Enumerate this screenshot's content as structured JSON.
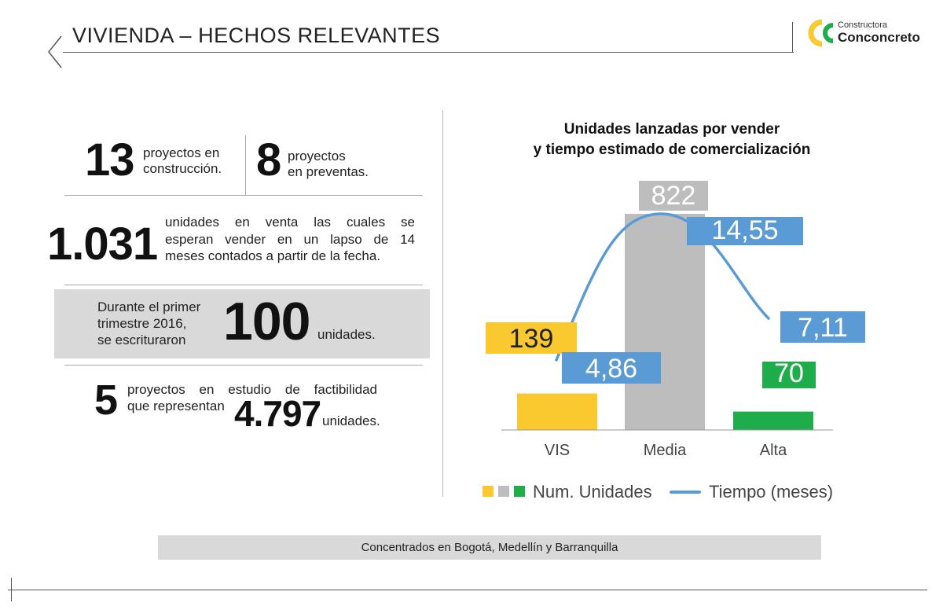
{
  "header": {
    "title": "VIVIENDA – HECHOS RELEVANTES",
    "logo_small": "Constructora",
    "logo_big": "Conconcreto"
  },
  "stats": {
    "s13": {
      "number": "13",
      "text_line1": "proyectos en",
      "text_line2": "construcción."
    },
    "s8": {
      "number": "8",
      "text_line1": "proyectos",
      "text_line2": "en  preventas."
    },
    "s1031": {
      "number": "1.031",
      "line1": "unidades en venta las cuales se",
      "line2": "esperan vender en un lapso de 14",
      "line3": "meses contados a partir de la fecha."
    },
    "s100": {
      "line1": "Durante el primer",
      "line2": "trimestre 2016,",
      "line3": "se escrituraron",
      "number": "100",
      "unit": "unidades."
    },
    "s5": {
      "number": "5",
      "line1": "proyectos en estudio de factibilidad",
      "line2": "que representan",
      "number2": "4.797",
      "unit": "unidades."
    }
  },
  "footer_note": "Concentrados en Bogotá, Medellín y Barranquilla",
  "colors": {
    "vis": "#f9c92f",
    "media": "#bdbdbd",
    "alta": "#1fac4b",
    "line": "#5b9bd5",
    "label_blue": "#5b9bd5"
  },
  "chart_data": {
    "type": "bar",
    "title_line1": "Unidades lanzadas por vender",
    "title_line2": "y tiempo estimado de comercialización",
    "categories": [
      "VIS",
      "Media",
      "Alta"
    ],
    "series": [
      {
        "name": "Num. Unidades",
        "type": "bar",
        "values": [
          139,
          822,
          70
        ],
        "labels": [
          "139",
          "822",
          "70"
        ]
      },
      {
        "name": "Tiempo (meses)",
        "type": "line",
        "values": [
          4.86,
          14.55,
          7.11
        ],
        "labels": [
          "4,86",
          "14,55",
          "7,11"
        ]
      }
    ],
    "legend_position": "bottom",
    "grid": false
  }
}
